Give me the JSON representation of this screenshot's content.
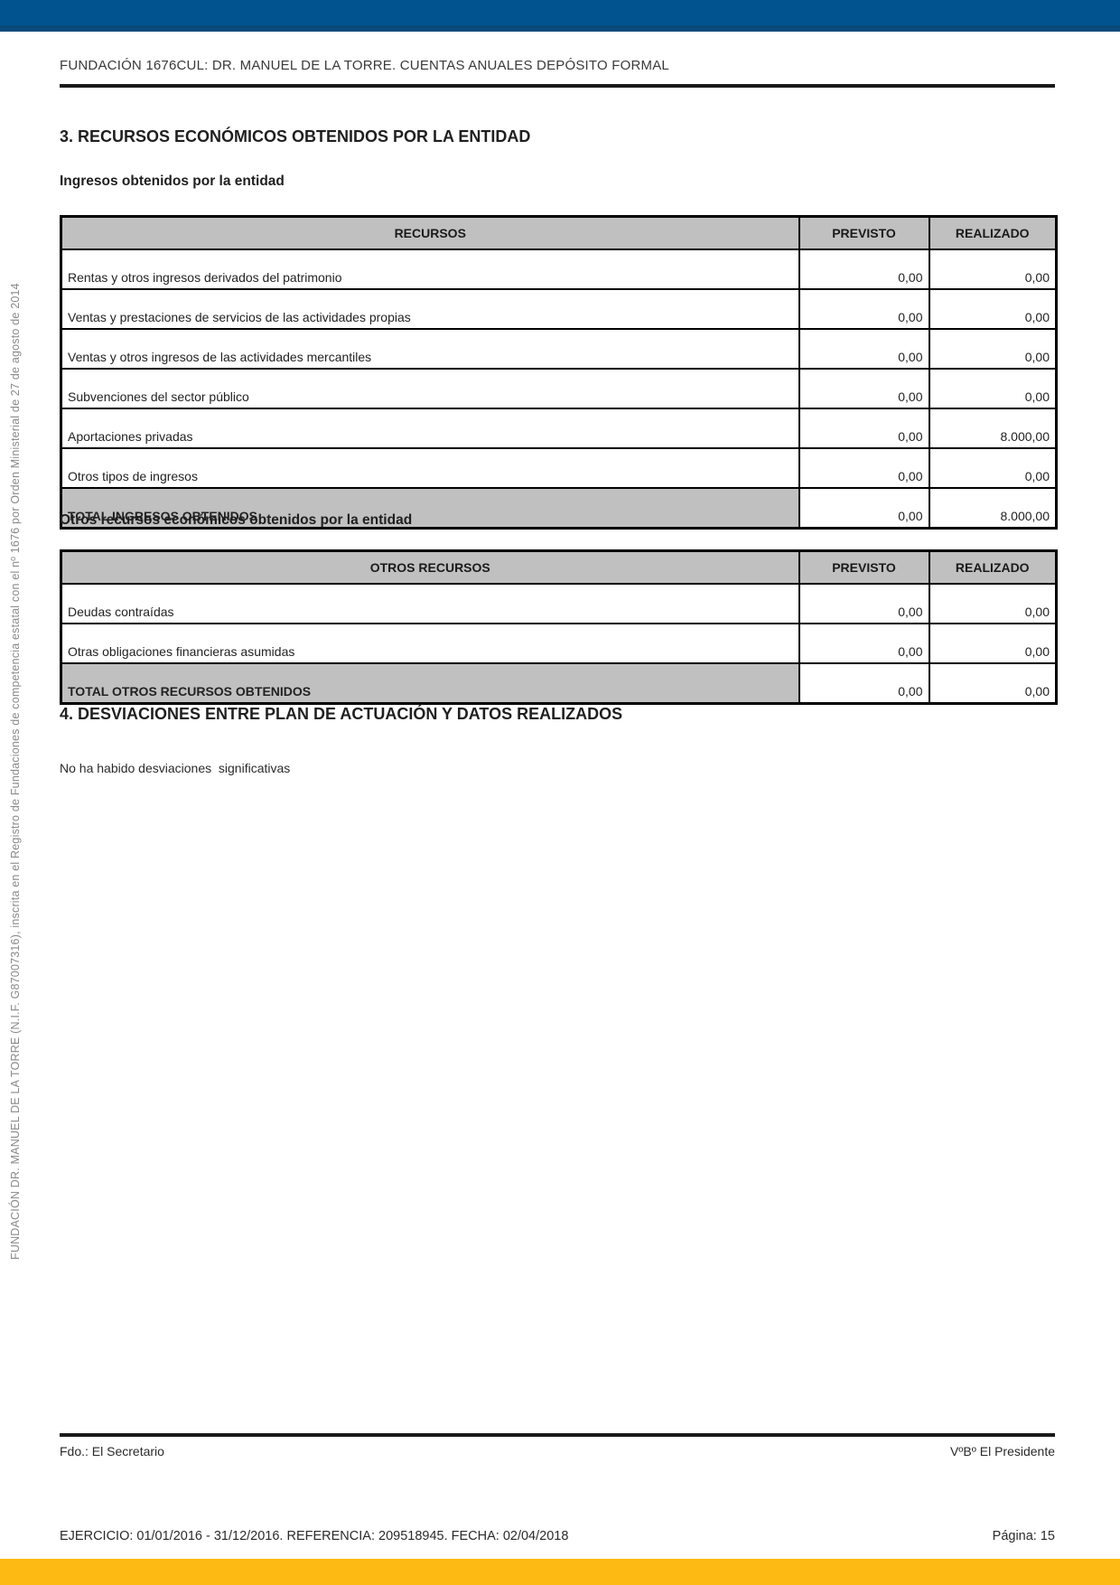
{
  "colors": {
    "top_bar": "#00538e",
    "top_bar_stripe": "#0a4a7c",
    "bottom_bar": "#fcba12",
    "table_header_bg": "#c0c0c0",
    "rule": "#1a1a1a",
    "sidebar_text": "#8a8a8a",
    "text": "#1a1a1a"
  },
  "header": {
    "title": "FUNDACIÓN 1676CUL: DR. MANUEL DE LA TORRE. CUENTAS ANUALES DEPÓSITO FORMAL"
  },
  "sidebar": {
    "registry_text": "FUNDACIÓN DR. MANUEL DE LA TORRE (N.I.F. G87007316), inscrita en el Registro de Fundaciones de competencia estatal con el nº 1676 por Orden Ministerial de 27 de agosto de 2014"
  },
  "section3": {
    "title": "3. RECURSOS ECONÓMICOS OBTENIDOS POR LA ENTIDAD"
  },
  "t1": {
    "title": "Ingresos obtenidos por la entidad",
    "col_label": "RECURSOS",
    "col_previsto": "PREVISTO",
    "col_realizado": "REALIZADO",
    "rows": [
      {
        "label": "Rentas y otros ingresos derivados del patrimonio",
        "previsto": "0,00",
        "realizado": "0,00"
      },
      {
        "label": "Ventas y prestaciones de servicios de las actividades propias",
        "previsto": "0,00",
        "realizado": "0,00"
      },
      {
        "label": "Ventas y otros ingresos de las actividades mercantiles",
        "previsto": "0,00",
        "realizado": "0,00"
      },
      {
        "label": "Subvenciones del sector público",
        "previsto": "0,00",
        "realizado": "0,00"
      },
      {
        "label": "Aportaciones privadas",
        "previsto": "0,00",
        "realizado": "8.000,00"
      },
      {
        "label": "Otros tipos de ingresos",
        "previsto": "0,00",
        "realizado": "0,00"
      }
    ],
    "total": {
      "label": "TOTAL INGRESOS OBTENIDOS",
      "previsto": "0,00",
      "realizado": "8.000,00"
    }
  },
  "t2": {
    "title": "Otros recursos económicos obtenidos por la entidad",
    "col_label": "OTROS RECURSOS",
    "col_previsto": "PREVISTO",
    "col_realizado": "REALIZADO",
    "rows": [
      {
        "label": "Deudas contraídas",
        "previsto": "0,00",
        "realizado": "0,00"
      },
      {
        "label": "Otras obligaciones financieras asumidas",
        "previsto": "0,00",
        "realizado": "0,00"
      }
    ],
    "total": {
      "label": "TOTAL OTROS RECURSOS OBTENIDOS",
      "previsto": "0,00",
      "realizado": "0,00"
    }
  },
  "section4": {
    "title": "4. DESVIACIONES ENTRE PLAN DE ACTUACIÓN Y DATOS REALIZADOS",
    "body": "No ha habido desviaciones  significativas"
  },
  "footer": {
    "secretary": "Fdo.: El Secretario",
    "president": "VºBº El Presidente",
    "exercise_info": "EJERCICIO: 01/01/2016 - 31/12/2016. REFERENCIA: 209518945. FECHA: 02/04/2018",
    "page": "Página: 15"
  }
}
